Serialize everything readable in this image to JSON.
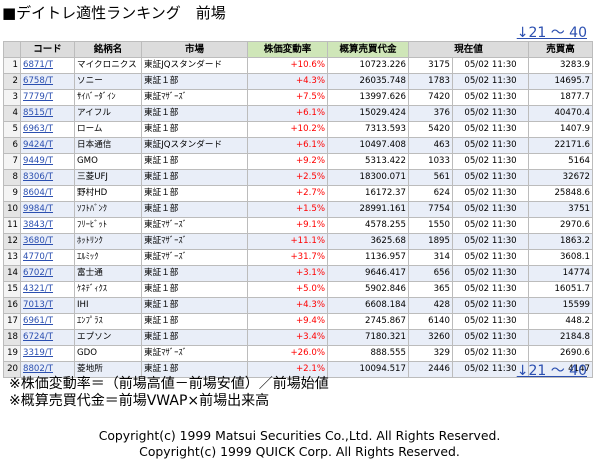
{
  "title": "■デイトレ適性ランキング　前場",
  "pager": {
    "range_label": "↓21 ～ 40"
  },
  "table": {
    "headers": [
      "",
      "コード",
      "銘柄名",
      "市場",
      "株価変動率",
      "概算売買代金",
      "現在値",
      "",
      "売買高"
    ],
    "rows": [
      {
        "no": "1",
        "code": "6871/T",
        "name": "マイクロニクス",
        "market": "東証JQスタンダード",
        "change": "+10.6%",
        "turnover": "10723.226",
        "price": "3175",
        "time": "05/02 11:30",
        "volume": "3283.9"
      },
      {
        "no": "2",
        "code": "6758/T",
        "name": "ソニー",
        "market": "東証１部",
        "change": "+4.3%",
        "turnover": "26035.748",
        "price": "1783",
        "time": "05/02 11:30",
        "volume": "14695.7"
      },
      {
        "no": "3",
        "code": "7779/T",
        "name": "ｻｲﾊﾞｰﾀﾞｲﾝ",
        "market": "東証ﾏｻﾞｰｽﾞ",
        "change": "+7.5%",
        "turnover": "13997.626",
        "price": "7420",
        "time": "05/02 11:30",
        "volume": "1877.7"
      },
      {
        "no": "4",
        "code": "8515/T",
        "name": "アイフル",
        "market": "東証１部",
        "change": "+6.1%",
        "turnover": "15029.424",
        "price": "376",
        "time": "05/02 11:30",
        "volume": "40470.4"
      },
      {
        "no": "5",
        "code": "6963/T",
        "name": "ローム",
        "market": "東証１部",
        "change": "+10.2%",
        "turnover": "7313.593",
        "price": "5420",
        "time": "05/02 11:30",
        "volume": "1407.9"
      },
      {
        "no": "6",
        "code": "9424/T",
        "name": "日本通信",
        "market": "東証JQスタンダード",
        "change": "+6.1%",
        "turnover": "10497.408",
        "price": "463",
        "time": "05/02 11:30",
        "volume": "22171.6"
      },
      {
        "no": "7",
        "code": "9449/T",
        "name": "GMO",
        "market": "東証１部",
        "change": "+9.2%",
        "turnover": "5313.422",
        "price": "1033",
        "time": "05/02 11:30",
        "volume": "5164"
      },
      {
        "no": "8",
        "code": "8306/T",
        "name": "三菱UFJ",
        "market": "東証１部",
        "change": "+2.5%",
        "turnover": "18300.071",
        "price": "561",
        "time": "05/02 11:30",
        "volume": "32672"
      },
      {
        "no": "9",
        "code": "8604/T",
        "name": "野村HD",
        "market": "東証１部",
        "change": "+2.7%",
        "turnover": "16172.37",
        "price": "624",
        "time": "05/02 11:30",
        "volume": "25848.6"
      },
      {
        "no": "10",
        "code": "9984/T",
        "name": "ｿﾌﾄﾊﾞﾝｸ",
        "market": "東証１部",
        "change": "+1.5%",
        "turnover": "28991.161",
        "price": "7754",
        "time": "05/02 11:30",
        "volume": "3751"
      },
      {
        "no": "11",
        "code": "3843/T",
        "name": "ﾌﾘｰﾋﾞｯﾄ",
        "market": "東証ﾏｻﾞｰｽﾞ",
        "change": "+9.1%",
        "turnover": "4578.255",
        "price": "1550",
        "time": "05/02 11:30",
        "volume": "2970.6"
      },
      {
        "no": "12",
        "code": "3680/T",
        "name": "ﾎｯﾄﾘﾝｸ",
        "market": "東証ﾏｻﾞｰｽﾞ",
        "change": "+11.1%",
        "turnover": "3625.68",
        "price": "1895",
        "time": "05/02 11:30",
        "volume": "1863.2"
      },
      {
        "no": "13",
        "code": "4770/T",
        "name": "ｴﾙﾐｯｸ",
        "market": "東証ﾏｻﾞｰｽﾞ",
        "change": "+31.7%",
        "turnover": "1136.957",
        "price": "314",
        "time": "05/02 11:30",
        "volume": "3608.1"
      },
      {
        "no": "14",
        "code": "6702/T",
        "name": "富士通",
        "market": "東証１部",
        "change": "+3.1%",
        "turnover": "9646.417",
        "price": "656",
        "time": "05/02 11:30",
        "volume": "14774"
      },
      {
        "no": "15",
        "code": "4321/T",
        "name": "ｹﾈﾃﾞｨｸｽ",
        "market": "東証１部",
        "change": "+5.0%",
        "turnover": "5902.846",
        "price": "365",
        "time": "05/02 11:30",
        "volume": "16051.7"
      },
      {
        "no": "16",
        "code": "7013/T",
        "name": "IHI",
        "market": "東証１部",
        "change": "+4.3%",
        "turnover": "6608.184",
        "price": "428",
        "time": "05/02 11:30",
        "volume": "15599"
      },
      {
        "no": "17",
        "code": "6961/T",
        "name": "ｴﾝﾌﾟﾗｽ",
        "market": "東証１部",
        "change": "+9.4%",
        "turnover": "2745.867",
        "price": "6140",
        "time": "05/02 11:30",
        "volume": "448.2"
      },
      {
        "no": "18",
        "code": "6724/T",
        "name": "エプソン",
        "market": "東証１部",
        "change": "+3.4%",
        "turnover": "7180.321",
        "price": "3260",
        "time": "05/02 11:30",
        "volume": "2184.8"
      },
      {
        "no": "19",
        "code": "3319/T",
        "name": "GDO",
        "market": "東証ﾏｻﾞｰｽﾞ",
        "change": "+26.0%",
        "turnover": "888.555",
        "price": "329",
        "time": "05/02 11:30",
        "volume": "2690.6"
      },
      {
        "no": "20",
        "code": "8802/T",
        "name": "菱地所",
        "market": "東証１部",
        "change": "+2.1%",
        "turnover": "10094.517",
        "price": "2446",
        "time": "05/02 11:30",
        "volume": "4147"
      }
    ]
  },
  "notes": [
    "※株価変動率＝（前場高値－前場安値）／前場始値",
    "※概算売買代金＝前場VWAP×前場出来高"
  ],
  "copyright": [
    "Copyright(c) 1999 Matsui Securities Co.,Ltd. All Rights Reserved.",
    "Copyright(c) 1999 QUICK Corp. All Rights Reserved."
  ]
}
